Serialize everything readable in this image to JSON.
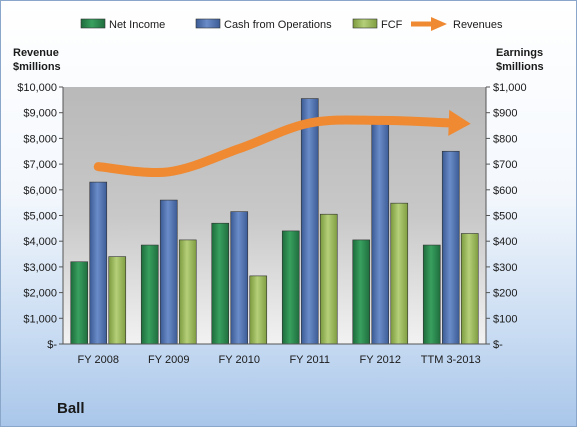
{
  "chart_data": {
    "type": "bar",
    "company": "Ball",
    "categories": [
      "FY 2008",
      "FY 2009",
      "FY 2010",
      "FY 2011",
      "FY 2012",
      "TTM 3-2013"
    ],
    "series": [
      {
        "name": "Net Income",
        "axis": "right",
        "type": "bar",
        "color": "#2a8a4e",
        "values": [
          320,
          385,
          470,
          440,
          405,
          385
        ]
      },
      {
        "name": "Cash from Operations",
        "axis": "right",
        "type": "bar",
        "color": "#4f72b0",
        "values": [
          630,
          560,
          515,
          955,
          855,
          750
        ]
      },
      {
        "name": "FCF",
        "axis": "right",
        "type": "bar",
        "color": "#9bb85c",
        "values": [
          340,
          405,
          265,
          505,
          548,
          430
        ]
      },
      {
        "name": "Revenues",
        "axis": "left",
        "type": "line-arrow",
        "color": "#ef8a33",
        "values": [
          6900,
          6700,
          7600,
          8600,
          8700,
          8600
        ]
      }
    ],
    "left_axis": {
      "title_line1": "Revenue",
      "title_line2": "$millions",
      "min": 0,
      "max": 10000,
      "ticks": [
        "$-",
        "$1,000",
        "$2,000",
        "$3,000",
        "$4,000",
        "$5,000",
        "$6,000",
        "$7,000",
        "$8,000",
        "$9,000",
        "$10,000"
      ]
    },
    "right_axis": {
      "title_line1": "Earnings",
      "title_line2": "$millions",
      "min": 0,
      "max": 1000,
      "ticks": [
        "$-",
        "$100",
        "$200",
        "$300",
        "$400",
        "$500",
        "$600",
        "$700",
        "$800",
        "$900",
        "$1,000"
      ]
    },
    "legend_position": "top",
    "grid": false
  }
}
